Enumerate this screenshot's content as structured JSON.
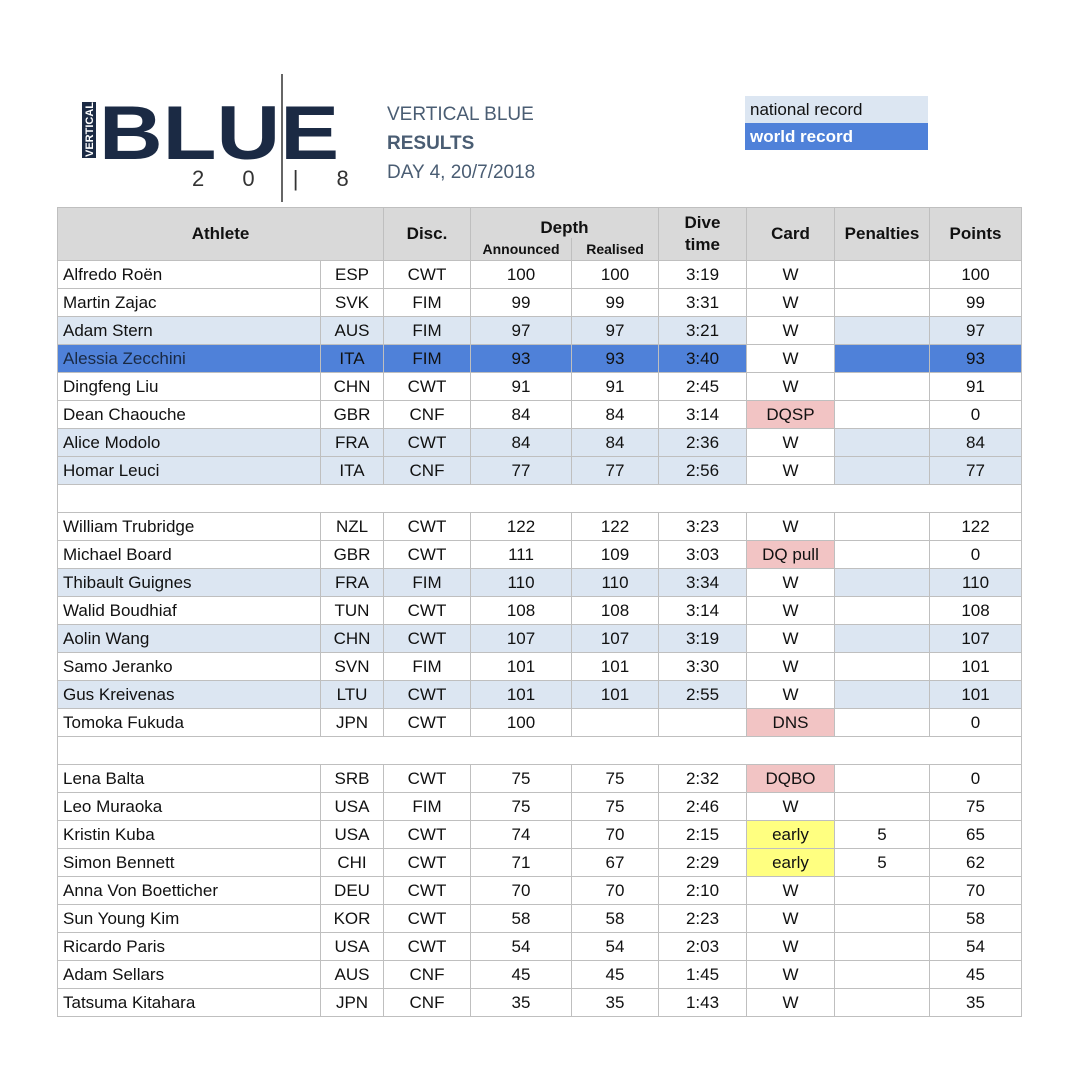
{
  "logo": {
    "text_main": "BLUE",
    "text_side": "VERTICAL",
    "year": "2 0 | 8"
  },
  "header": {
    "line1": "VERTICAL BLUE",
    "line2": "RESULTS",
    "line3": "DAY 4,   20/7/2018"
  },
  "legend": {
    "national_record": "national record",
    "world_record": "world record"
  },
  "colors": {
    "national_record": "#dce6f2",
    "world_record": "#4f81d9",
    "dq": "#f2c4c4",
    "early": "#ffff80",
    "header": "#d9d9d9"
  },
  "columns": {
    "athlete": "Athlete",
    "disc": "Disc.",
    "depth": "Depth",
    "announced": "Announced",
    "realised": "Realised",
    "dive_time": "Dive time",
    "card": "Card",
    "penalties": "Penalties",
    "points": "Points"
  },
  "groups": [
    [
      {
        "name": "Alfredo Roën",
        "country": "ESP",
        "disc": "CWT",
        "announced": "100",
        "realised": "100",
        "time": "3:19",
        "card": "W",
        "penalties": "",
        "points": "100",
        "record": ""
      },
      {
        "name": "Martin Zajac",
        "country": "SVK",
        "disc": "FIM",
        "announced": "99",
        "realised": "99",
        "time": "3:31",
        "card": "W",
        "penalties": "",
        "points": "99",
        "record": ""
      },
      {
        "name": "Adam Stern",
        "country": "AUS",
        "disc": "FIM",
        "announced": "97",
        "realised": "97",
        "time": "3:21",
        "card": "W",
        "penalties": "",
        "points": "97",
        "record": "nr"
      },
      {
        "name": "Alessia Zecchini",
        "country": "ITA",
        "disc": "FIM",
        "announced": "93",
        "realised": "93",
        "time": "3:40",
        "card": "W",
        "penalties": "",
        "points": "93",
        "record": "wr"
      },
      {
        "name": "Dingfeng Liu",
        "country": "CHN",
        "disc": "CWT",
        "announced": "91",
        "realised": "91",
        "time": "2:45",
        "card": "W",
        "penalties": "",
        "points": "91",
        "record": ""
      },
      {
        "name": "Dean Chaouche",
        "country": "GBR",
        "disc": "CNF",
        "announced": "84",
        "realised": "84",
        "time": "3:14",
        "card": "DQSP",
        "penalties": "",
        "points": "0",
        "record": ""
      },
      {
        "name": "Alice Modolo",
        "country": "FRA",
        "disc": "CWT",
        "announced": "84",
        "realised": "84",
        "time": "2:36",
        "card": "W",
        "penalties": "",
        "points": "84",
        "record": "nr"
      },
      {
        "name": "Homar Leuci",
        "country": "ITA",
        "disc": "CNF",
        "announced": "77",
        "realised": "77",
        "time": "2:56",
        "card": "W",
        "penalties": "",
        "points": "77",
        "record": "nr"
      }
    ],
    [
      {
        "name": "William Trubridge",
        "country": "NZL",
        "disc": "CWT",
        "announced": "122",
        "realised": "122",
        "time": "3:23",
        "card": "W",
        "penalties": "",
        "points": "122",
        "record": ""
      },
      {
        "name": "Michael Board",
        "country": "GBR",
        "disc": "CWT",
        "announced": "111",
        "realised": "109",
        "time": "3:03",
        "card": "DQ pull",
        "penalties": "",
        "points": "0",
        "record": ""
      },
      {
        "name": "Thibault Guignes",
        "country": "FRA",
        "disc": "FIM",
        "announced": "110",
        "realised": "110",
        "time": "3:34",
        "card": "W",
        "penalties": "",
        "points": "110",
        "record": "nr"
      },
      {
        "name": "Walid Boudhiaf",
        "country": "TUN",
        "disc": "CWT",
        "announced": "108",
        "realised": "108",
        "time": "3:14",
        "card": "W",
        "penalties": "",
        "points": "108",
        "record": ""
      },
      {
        "name": "Aolin Wang",
        "country": "CHN",
        "disc": "CWT",
        "announced": "107",
        "realised": "107",
        "time": "3:19",
        "card": "W",
        "penalties": "",
        "points": "107",
        "record": "nr"
      },
      {
        "name": "Samo Jeranko",
        "country": "SVN",
        "disc": "FIM",
        "announced": "101",
        "realised": "101",
        "time": "3:30",
        "card": "W",
        "penalties": "",
        "points": "101",
        "record": ""
      },
      {
        "name": "Gus Kreivenas",
        "country": "LTU",
        "disc": "CWT",
        "announced": "101",
        "realised": "101",
        "time": "2:55",
        "card": "W",
        "penalties": "",
        "points": "101",
        "record": "nr"
      },
      {
        "name": "Tomoka Fukuda",
        "country": "JPN",
        "disc": "CWT",
        "announced": "100",
        "realised": "",
        "time": "",
        "card": "DNS",
        "penalties": "",
        "points": "0",
        "record": ""
      }
    ],
    [
      {
        "name": "Lena Balta",
        "country": "SRB",
        "disc": "CWT",
        "announced": "75",
        "realised": "75",
        "time": "2:32",
        "card": "DQBO",
        "penalties": "",
        "points": "0",
        "record": ""
      },
      {
        "name": "Leo Muraoka",
        "country": "USA",
        "disc": "FIM",
        "announced": "75",
        "realised": "75",
        "time": "2:46",
        "card": "W",
        "penalties": "",
        "points": "75",
        "record": ""
      },
      {
        "name": "Kristin Kuba",
        "country": "USA",
        "disc": "CWT",
        "announced": "74",
        "realised": "70",
        "time": "2:15",
        "card": "early",
        "penalties": "5",
        "points": "65",
        "record": ""
      },
      {
        "name": "Simon Bennett",
        "country": "CHI",
        "disc": "CWT",
        "announced": "71",
        "realised": "67",
        "time": "2:29",
        "card": "early",
        "penalties": "5",
        "points": "62",
        "record": ""
      },
      {
        "name": "Anna Von Boetticher",
        "country": "DEU",
        "disc": "CWT",
        "announced": "70",
        "realised": "70",
        "time": "2:10",
        "card": "W",
        "penalties": "",
        "points": "70",
        "record": ""
      },
      {
        "name": "Sun Young Kim",
        "country": "KOR",
        "disc": "CWT",
        "announced": "58",
        "realised": "58",
        "time": "2:23",
        "card": "W",
        "penalties": "",
        "points": "58",
        "record": ""
      },
      {
        "name": "Ricardo Paris",
        "country": "USA",
        "disc": "CWT",
        "announced": "54",
        "realised": "54",
        "time": "2:03",
        "card": "W",
        "penalties": "",
        "points": "54",
        "record": ""
      },
      {
        "name": "Adam Sellars",
        "country": "AUS",
        "disc": "CNF",
        "announced": "45",
        "realised": "45",
        "time": "1:45",
        "card": "W",
        "penalties": "",
        "points": "45",
        "record": ""
      },
      {
        "name": "Tatsuma Kitahara",
        "country": "JPN",
        "disc": "CNF",
        "announced": "35",
        "realised": "35",
        "time": "1:43",
        "card": "W",
        "penalties": "",
        "points": "35",
        "record": ""
      }
    ]
  ]
}
